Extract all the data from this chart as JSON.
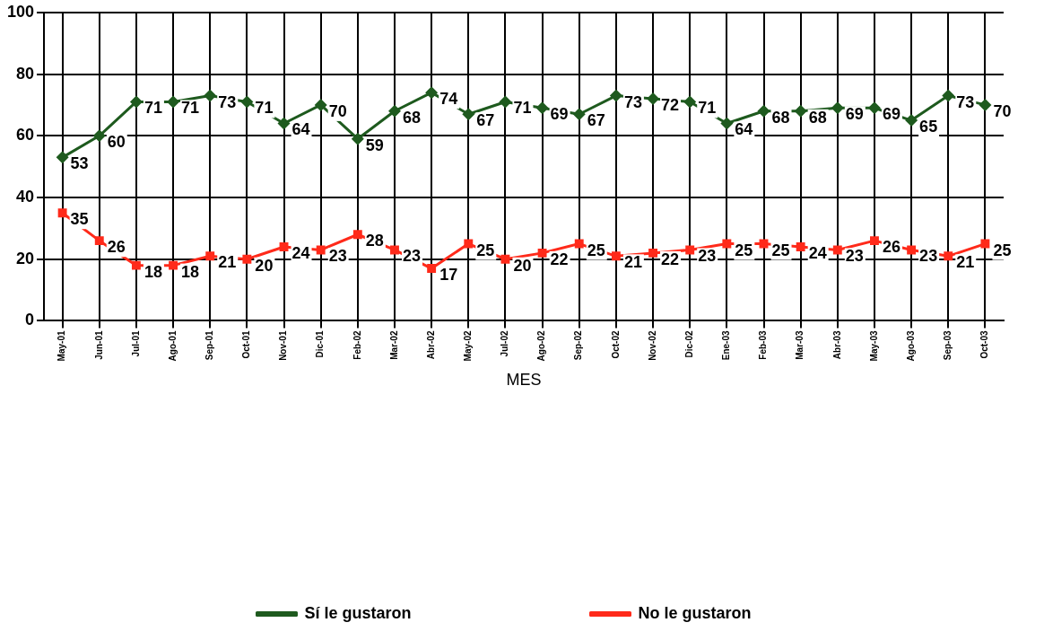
{
  "chart_data": {
    "type": "line",
    "xlabel": "MES",
    "categories": [
      "May-01",
      "Jun-01",
      "Jul-01",
      "Ago-01",
      "Sep-01",
      "Oct-01",
      "Nov-01",
      "Dic-01",
      "Feb-02",
      "Mar-02",
      "Abr-02",
      "May-02",
      "Jul-02",
      "Ago-02",
      "Sep-02",
      "Oct-02",
      "Nov-02",
      "Dic-02",
      "Ene-03",
      "Feb-03",
      "Mar-03",
      "Abr-03",
      "May-03",
      "Ago-03",
      "Sep-03",
      "Oct-03"
    ],
    "series": [
      {
        "name": "Sí le gustaron",
        "color": "#1e5a1e",
        "marker": "diamond",
        "values": [
          53,
          60,
          71,
          71,
          73,
          71,
          64,
          70,
          59,
          68,
          74,
          67,
          71,
          69,
          67,
          73,
          72,
          71,
          64,
          68,
          68,
          69,
          69,
          65,
          73,
          70
        ]
      },
      {
        "name": "No le gustaron",
        "color": "#ff2a1a",
        "marker": "square",
        "values": [
          35,
          26,
          18,
          18,
          21,
          20,
          24,
          23,
          28,
          23,
          17,
          25,
          20,
          22,
          25,
          21,
          22,
          23,
          25,
          25,
          24,
          23,
          26,
          23,
          21,
          25
        ]
      }
    ],
    "ylim": [
      0,
      100
    ],
    "yticks": [
      0,
      20,
      40,
      60,
      80,
      100
    ],
    "grid": true,
    "legend": "bottom",
    "data_labels": true,
    "line_style": "solid"
  }
}
